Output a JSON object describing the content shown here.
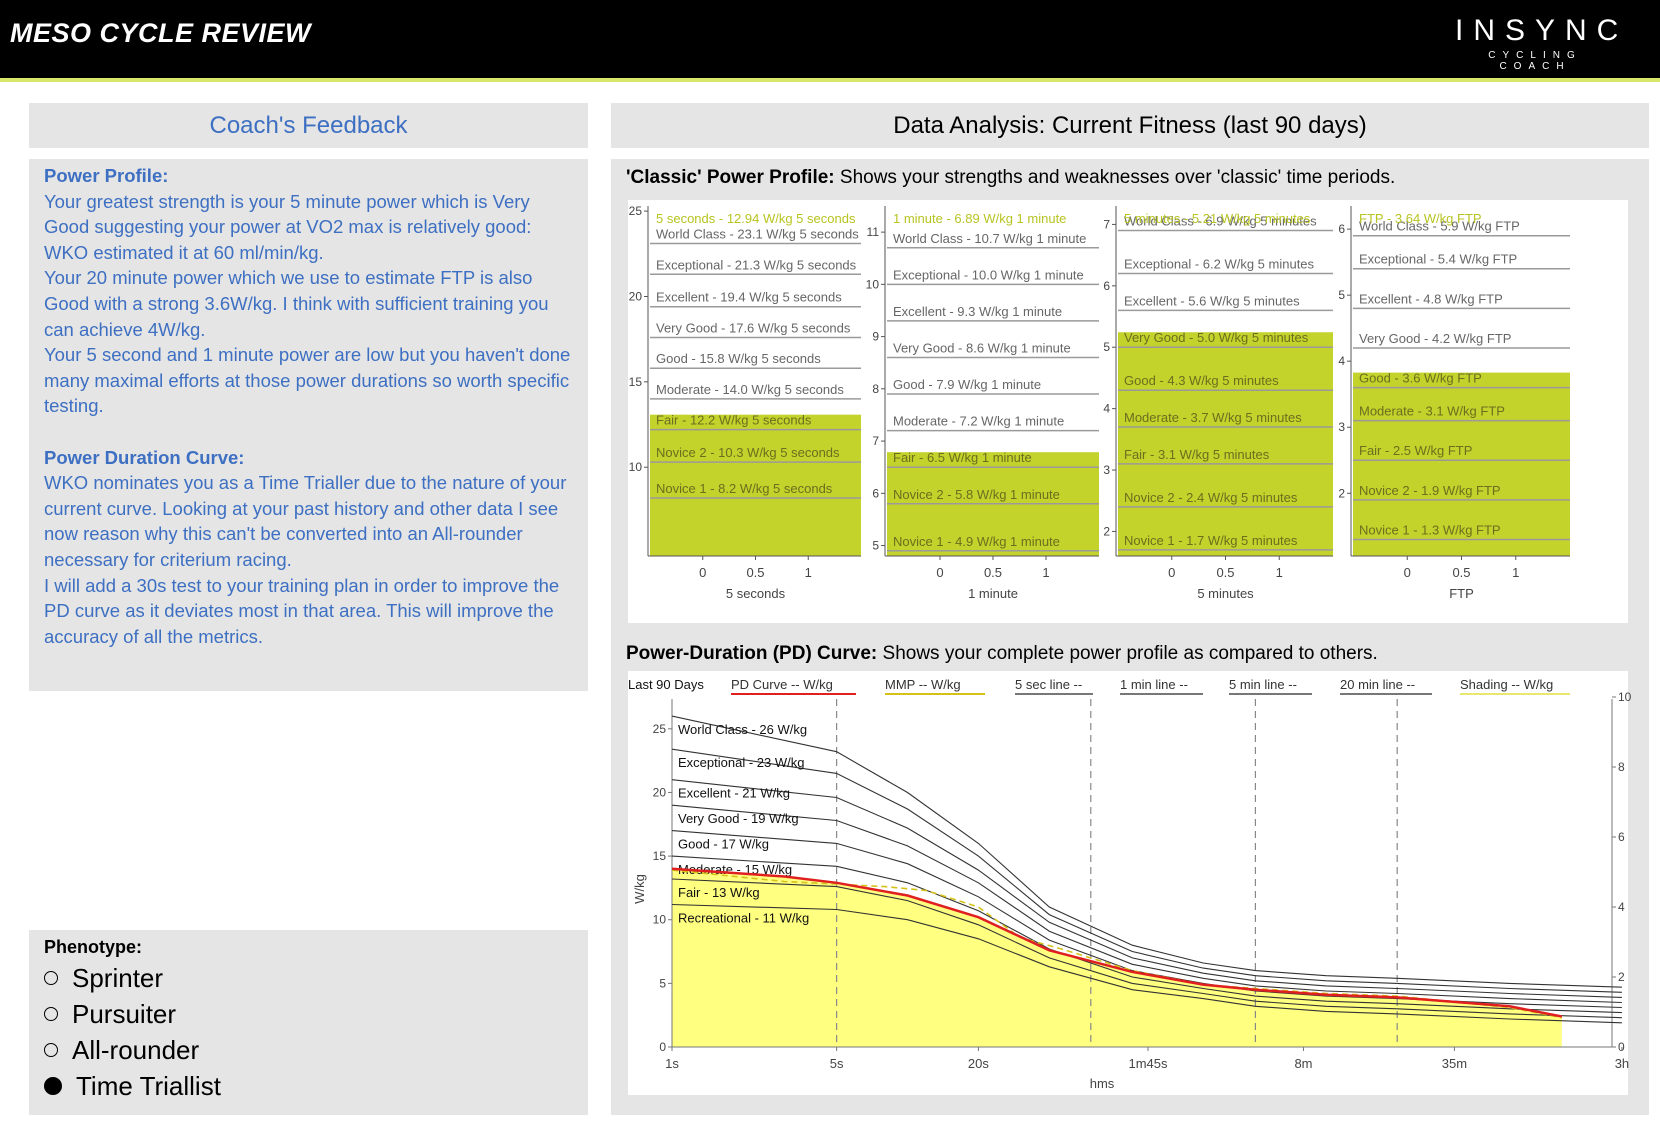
{
  "header": {
    "title": "MESO CYCLE REVIEW",
    "brand_main": "INSYNC",
    "brand_sub": "CYCLING COACH"
  },
  "left": {
    "heading": "Coach's Feedback",
    "paragraphs": [
      {
        "text": "Power Profile:",
        "bold": true
      },
      {
        "text": "Your greatest strength is your 5 minute power which is Very Good suggesting your power at VO2 max is relatively good: WKO estimated it at 60 ml/min/kg.",
        "bold": false
      },
      {
        "text": "Your 20 minute power which we use to estimate FTP is also Good with a strong 3.6W/kg. I think with sufficient training you can achieve 4W/kg.",
        "bold": false
      },
      {
        "text": "Your 5 second and 1 minute power are low but you haven't done many maximal efforts at those power durations so worth specific testing.",
        "bold": false
      },
      {
        "text": " ",
        "bold": false
      },
      {
        "text": "Power Duration Curve:",
        "bold": true
      },
      {
        "text": "WKO nominates you as a Time Trialler due to the nature of your current curve. Looking at your past history and other data I see now reason why this can't be converted into an All-rounder necessary for criterium racing.",
        "bold": false
      },
      {
        "text": "I will add a 30s test to your training plan in order to improve the PD curve as it deviates most in that area. This will improve the accuracy of all the metrics.",
        "bold": false
      }
    ],
    "phenotype_label": "Phenotype:",
    "phenotypes": [
      {
        "label": "Sprinter",
        "selected": false
      },
      {
        "label": "Pursuiter",
        "selected": false
      },
      {
        "label": "All-rounder",
        "selected": false
      },
      {
        "label": "Time Triallist",
        "selected": true
      }
    ]
  },
  "right": {
    "heading": "Data Analysis: Current Fitness (last 90 days)",
    "classic_title_bold": "'Classic' Power Profile:",
    "classic_title_rest": " Shows your strengths and weaknesses over 'classic' time periods.",
    "pd_title_bold": "Power-Duration (PD) Curve:",
    "pd_title_rest": " Shows your complete power profile as compared to others."
  },
  "colors": {
    "accent": "#c4d22c",
    "feedback_text": "#3d6fc2",
    "panel": "#e5e5e5",
    "pd_red": "#e02020",
    "shading": "#ffff80",
    "top_line": "#d9e86a"
  },
  "chart_data": [
    {
      "type": "bar",
      "id": "classic-5s",
      "xlabel": "5 seconds",
      "ylim": [
        4.8,
        25.3
      ],
      "yticks": [
        10,
        15,
        20,
        25
      ],
      "xticks": [
        "0",
        "0.5",
        "1"
      ],
      "highlight": "5 seconds - 12.94 W/kg 5 seconds",
      "current": 12.94,
      "levels": [
        {
          "label": "World Class - 23.1 W/kg 5 seconds",
          "value": 23.1
        },
        {
          "label": "Exceptional - 21.3 W/kg 5 seconds",
          "value": 21.3
        },
        {
          "label": "Excellent - 19.4 W/kg 5 seconds",
          "value": 19.4
        },
        {
          "label": "Very Good - 17.6 W/kg 5 seconds",
          "value": 17.6
        },
        {
          "label": "Good - 15.8 W/kg 5 seconds",
          "value": 15.8
        },
        {
          "label": "Moderate - 14.0 W/kg 5 seconds",
          "value": 14.0
        },
        {
          "label": "Fair - 12.2 W/kg 5 seconds",
          "value": 12.2
        },
        {
          "label": "Novice 2 - 10.3 W/kg 5 seconds",
          "value": 10.3
        },
        {
          "label": "Novice 1 - 8.2 W/kg 5 seconds",
          "value": 8.2
        }
      ]
    },
    {
      "type": "bar",
      "id": "classic-1min",
      "xlabel": "1 minute",
      "ylim": [
        4.8,
        11.5
      ],
      "yticks": [
        5,
        6,
        7,
        8,
        9,
        10,
        11
      ],
      "xticks": [
        "0",
        "0.5",
        "1"
      ],
      "highlight": "1 minute - 6.89 W/kg 1 minute",
      "current": 6.89,
      "levels": [
        {
          "label": "World Class - 10.7 W/kg 1 minute",
          "value": 10.7
        },
        {
          "label": "Exceptional - 10.0 W/kg 1 minute",
          "value": 10.0
        },
        {
          "label": "Excellent - 9.3 W/kg 1 minute",
          "value": 9.3
        },
        {
          "label": "Very Good - 8.6 W/kg 1 minute",
          "value": 8.6
        },
        {
          "label": "Good - 7.9 W/kg 1 minute",
          "value": 7.9
        },
        {
          "label": "Moderate - 7.2 W/kg 1 minute",
          "value": 7.2
        },
        {
          "label": "Fair - 6.5 W/kg 1 minute",
          "value": 6.5
        },
        {
          "label": "Novice 2 - 5.8 W/kg 1 minute",
          "value": 5.8
        },
        {
          "label": "Novice 1 - 4.9 W/kg 1 minute",
          "value": 4.9
        }
      ]
    },
    {
      "type": "bar",
      "id": "classic-5min",
      "xlabel": "5 minutes",
      "ylim": [
        1.6,
        7.3
      ],
      "yticks": [
        2,
        3,
        4,
        5,
        6,
        7
      ],
      "xticks": [
        "0",
        "0.5",
        "1"
      ],
      "highlight": "5 minutes - 5.21 W/kg 5 minutes",
      "current": 5.21,
      "levels": [
        {
          "label": "World Class - 6.9 W/kg 5 minutes",
          "value": 6.9
        },
        {
          "label": "Exceptional - 6.2 W/kg 5 minutes",
          "value": 6.2
        },
        {
          "label": "Excellent - 5.6 W/kg 5 minutes",
          "value": 5.6
        },
        {
          "label": "Very Good - 5.0 W/kg 5 minutes",
          "value": 5.0
        },
        {
          "label": "Good - 4.3 W/kg 5 minutes",
          "value": 4.3
        },
        {
          "label": "Moderate - 3.7 W/kg 5 minutes",
          "value": 3.7
        },
        {
          "label": "Fair - 3.1 W/kg 5 minutes",
          "value": 3.1
        },
        {
          "label": "Novice 2 - 2.4 W/kg 5 minutes",
          "value": 2.4
        },
        {
          "label": "Novice 1 - 1.7 W/kg 5 minutes",
          "value": 1.7
        }
      ]
    },
    {
      "type": "bar",
      "id": "classic-ftp",
      "xlabel": "FTP",
      "ylim": [
        1.05,
        6.35
      ],
      "yticks": [
        2,
        3,
        4,
        5,
        6
      ],
      "xticks": [
        "0",
        "0.5",
        "1"
      ],
      "highlight": "FTP - 3.64 W/kg FTP",
      "current": 3.64,
      "levels": [
        {
          "label": "World Class - 5.9 W/kg FTP",
          "value": 5.9
        },
        {
          "label": "Exceptional - 5.4 W/kg FTP",
          "value": 5.4
        },
        {
          "label": "Excellent - 4.8 W/kg FTP",
          "value": 4.8
        },
        {
          "label": "Very Good - 4.2 W/kg FTP",
          "value": 4.2
        },
        {
          "label": "Good - 3.6 W/kg FTP",
          "value": 3.6
        },
        {
          "label": "Moderate - 3.1 W/kg FTP",
          "value": 3.1
        },
        {
          "label": "Fair - 2.5 W/kg FTP",
          "value": 2.5
        },
        {
          "label": "Novice 2 - 1.9 W/kg FTP",
          "value": 1.9
        },
        {
          "label": "Novice 1 - 1.3 W/kg FTP",
          "value": 1.3
        }
      ]
    },
    {
      "type": "line",
      "id": "pd-curve",
      "xlabel": "hms",
      "ylabel": "W/kg",
      "xscale": "log",
      "xticks": [
        {
          "label": "1s",
          "sec": 1
        },
        {
          "label": "5s",
          "sec": 5
        },
        {
          "label": "20s",
          "sec": 20
        },
        {
          "label": "1m45s",
          "sec": 105
        },
        {
          "label": "8m",
          "sec": 480
        },
        {
          "label": "35m",
          "sec": 2100
        },
        {
          "label": "3h",
          "sec": 10800
        }
      ],
      "ylim": [
        0,
        27.5
      ],
      "yticks": [
        0,
        5,
        10,
        15,
        20,
        25
      ],
      "y2ticks": [
        0,
        2,
        4,
        6,
        8,
        10
      ],
      "y2lim": [
        0,
        10
      ],
      "vlines_sec": [
        5,
        60,
        300,
        1200
      ],
      "legend_prefix": "Last 90 Days",
      "legend": [
        "PD Curve -- W/kg",
        "MMP -- W/kg",
        "5 sec line --",
        "1 min line --",
        "5 min line --",
        "20 min line --",
        "Shading -- W/kg"
      ],
      "x_sec": [
        1,
        5,
        10,
        20,
        40,
        90,
        180,
        300,
        600,
        1200,
        3600,
        10800
      ],
      "levels": [
        {
          "label": "World Class - 26 W/kg",
          "values": [
            26.0,
            23.2,
            20.0,
            16.0,
            11.0,
            8.0,
            6.6,
            6.0,
            5.6,
            5.4,
            5.0,
            4.7
          ]
        },
        {
          "label": "Exceptional - 23 W/kg",
          "values": [
            23.4,
            21.5,
            18.7,
            15.0,
            10.4,
            7.5,
            6.2,
            5.6,
            5.2,
            5.0,
            4.6,
            4.3
          ]
        },
        {
          "label": "Excellent - 21 W/kg",
          "values": [
            21.0,
            19.6,
            17.2,
            13.9,
            9.8,
            7.0,
            5.8,
            5.2,
            4.8,
            4.6,
            4.2,
            3.9
          ]
        },
        {
          "label": "Very Good - 19 W/kg",
          "values": [
            19.0,
            17.8,
            15.8,
            12.9,
            9.1,
            6.5,
            5.4,
            4.8,
            4.4,
            4.2,
            3.8,
            3.5
          ]
        },
        {
          "label": "Good - 17 W/kg",
          "values": [
            17.0,
            16.0,
            14.4,
            11.8,
            8.4,
            6.0,
            5.0,
            4.4,
            4.0,
            3.8,
            3.4,
            3.1
          ]
        },
        {
          "label": "Moderate - 15 W/kg",
          "values": [
            15.0,
            14.2,
            12.9,
            10.7,
            7.7,
            5.5,
            4.6,
            4.0,
            3.6,
            3.4,
            3.0,
            2.7
          ]
        },
        {
          "label": "Fair - 13 W/kg",
          "values": [
            13.2,
            12.6,
            11.5,
            9.6,
            7.0,
            5.0,
            4.2,
            3.6,
            3.2,
            3.0,
            2.6,
            2.3
          ]
        },
        {
          "label": "Recreational - 11 W/kg",
          "values": [
            11.2,
            10.8,
            10.0,
            8.5,
            6.3,
            4.5,
            3.8,
            3.2,
            2.8,
            2.6,
            2.2,
            1.9
          ]
        }
      ],
      "pd_x_sec": [
        1,
        3,
        5,
        10,
        20,
        40,
        90,
        180,
        300,
        600,
        1200,
        3600,
        6000
      ],
      "pd_values": [
        14.0,
        13.4,
        12.9,
        11.9,
        10.2,
        7.6,
        5.9,
        4.9,
        4.5,
        4.1,
        3.9,
        3.2,
        2.4
      ],
      "mmp_x_sec": [
        1,
        3,
        5,
        8,
        12,
        20,
        30,
        45,
        90,
        180,
        300,
        600,
        1200,
        3600,
        6000
      ],
      "mmp_values": [
        13.9,
        13.0,
        12.8,
        12.6,
        12.3,
        11.0,
        8.6,
        7.7,
        6.0,
        4.9,
        4.6,
        4.2,
        4.0,
        3.1,
        2.3
      ]
    }
  ]
}
